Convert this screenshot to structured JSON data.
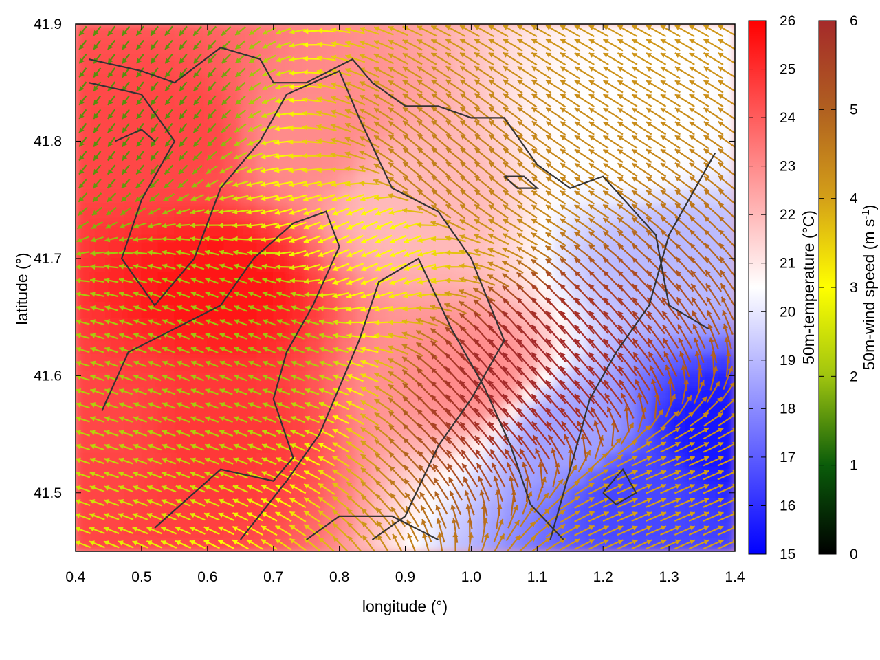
{
  "chart_data": {
    "type": "heatmap",
    "title": "",
    "xlabel": "longitude (°)",
    "ylabel": "latitude (°)",
    "xlim": [
      0.4,
      1.4
    ],
    "ylim": [
      41.45,
      41.9
    ],
    "x_ticks": [
      "0.4",
      "0.5",
      "0.6",
      "0.7",
      "0.8",
      "0.9",
      "1.0",
      "1.1",
      "1.2",
      "1.3",
      "1.4"
    ],
    "x_tick_values": [
      0.4,
      0.5,
      0.6,
      0.7,
      0.8,
      0.9,
      1.0,
      1.1,
      1.2,
      1.3,
      1.4
    ],
    "y_ticks": [
      "41.5",
      "41.6",
      "41.7",
      "41.8",
      "41.9"
    ],
    "y_tick_values": [
      41.5,
      41.6,
      41.7,
      41.8,
      41.9
    ],
    "grid": false,
    "temperature_colorbar": {
      "label": "50m-temperature (°C)",
      "range": [
        15,
        26
      ],
      "ticks": [
        "15",
        "16",
        "17",
        "18",
        "19",
        "20",
        "21",
        "22",
        "23",
        "24",
        "25",
        "26"
      ],
      "tick_values": [
        15,
        16,
        17,
        18,
        19,
        20,
        21,
        22,
        23,
        24,
        25,
        26
      ],
      "colors": [
        "#0000ff",
        "#ffffff",
        "#ff0000"
      ],
      "color_midpoint": 20.5
    },
    "wind_colorbar": {
      "label_main": "50m-wind speed (m s",
      "label_sup": "-1",
      "label_end": ")",
      "range": [
        0,
        6
      ],
      "ticks": [
        "0",
        "1",
        "2",
        "3",
        "4",
        "5",
        "6"
      ],
      "tick_values": [
        0,
        1,
        2,
        3,
        4,
        5,
        6
      ],
      "colors": [
        "#000000",
        "#0a5c0a",
        "#9fc40f",
        "#ffff00",
        "#d4a018",
        "#b06020",
        "#a52a2a"
      ]
    },
    "temperature_field_samples": [
      {
        "lon": 0.45,
        "lat": 41.55,
        "temp": 24.5
      },
      {
        "lon": 0.6,
        "lat": 41.55,
        "temp": 24.8
      },
      {
        "lon": 0.62,
        "lat": 41.68,
        "temp": 25.5
      },
      {
        "lon": 0.55,
        "lat": 41.8,
        "temp": 24.5
      },
      {
        "lon": 0.75,
        "lat": 41.8,
        "temp": 23.0
      },
      {
        "lon": 0.9,
        "lat": 41.75,
        "temp": 22.0
      },
      {
        "lon": 1.0,
        "lat": 41.6,
        "temp": 23.0
      },
      {
        "lon": 1.25,
        "lat": 41.8,
        "temp": 20.5
      },
      {
        "lon": 1.3,
        "lat": 41.7,
        "temp": 19.0
      },
      {
        "lon": 1.25,
        "lat": 41.5,
        "temp": 16.5
      },
      {
        "lon": 1.38,
        "lat": 41.55,
        "temp": 15.5
      },
      {
        "lon": 1.15,
        "lat": 41.55,
        "temp": 18.5
      }
    ],
    "wind_field_samples": [
      {
        "lon": 0.47,
        "lat": 41.83,
        "u": -0.3,
        "v": -0.4,
        "speed": 1.5
      },
      {
        "lon": 0.65,
        "lat": 41.64,
        "u": -0.5,
        "v": 0.2,
        "speed": 2.0
      },
      {
        "lon": 0.85,
        "lat": 41.72,
        "u": -0.7,
        "v": -0.3,
        "speed": 3.0
      },
      {
        "lon": 0.95,
        "lat": 41.77,
        "u": -0.6,
        "v": 0.5,
        "speed": 4.5
      },
      {
        "lon": 1.3,
        "lat": 41.49,
        "u": 0.7,
        "v": 0.3,
        "speed": 4.0
      },
      {
        "lon": 1.1,
        "lat": 41.6,
        "u": -0.6,
        "v": 0.7,
        "speed": 6.0
      }
    ],
    "contour_lines": [
      [
        [
          0.42,
          41.87
        ],
        [
          0.5,
          41.86
        ],
        [
          0.55,
          41.85
        ],
        [
          0.62,
          41.88
        ],
        [
          0.68,
          41.87
        ],
        [
          0.7,
          41.85
        ],
        [
          0.75,
          41.85
        ],
        [
          0.82,
          41.87
        ],
        [
          0.85,
          41.85
        ],
        [
          0.9,
          41.83
        ],
        [
          0.95,
          41.83
        ],
        [
          1.0,
          41.82
        ],
        [
          1.05,
          41.82
        ],
        [
          1.1,
          41.78
        ],
        [
          1.15,
          41.76
        ],
        [
          1.2,
          41.77
        ],
        [
          1.28,
          41.72
        ],
        [
          1.3,
          41.66
        ],
        [
          1.36,
          41.64
        ]
      ],
      [
        [
          0.42,
          41.85
        ],
        [
          0.5,
          41.84
        ],
        [
          0.55,
          41.8
        ],
        [
          0.5,
          41.75
        ],
        [
          0.47,
          41.7
        ],
        [
          0.52,
          41.66
        ],
        [
          0.58,
          41.7
        ],
        [
          0.62,
          41.76
        ],
        [
          0.68,
          41.8
        ],
        [
          0.72,
          41.84
        ],
        [
          0.8,
          41.86
        ],
        [
          0.83,
          41.82
        ],
        [
          0.88,
          41.76
        ],
        [
          0.95,
          41.74
        ],
        [
          1.0,
          41.7
        ],
        [
          1.05,
          41.63
        ],
        [
          1.0,
          41.58
        ],
        [
          0.95,
          41.54
        ],
        [
          0.9,
          41.48
        ],
        [
          0.85,
          41.46
        ]
      ],
      [
        [
          0.44,
          41.57
        ],
        [
          0.48,
          41.62
        ],
        [
          0.55,
          41.64
        ],
        [
          0.62,
          41.66
        ],
        [
          0.67,
          41.7
        ],
        [
          0.73,
          41.73
        ],
        [
          0.78,
          41.74
        ],
        [
          0.8,
          41.71
        ],
        [
          0.76,
          41.66
        ],
        [
          0.72,
          41.62
        ],
        [
          0.7,
          41.58
        ],
        [
          0.73,
          41.53
        ],
        [
          0.7,
          41.51
        ],
        [
          0.62,
          41.52
        ],
        [
          0.56,
          41.49
        ],
        [
          0.52,
          41.47
        ]
      ],
      [
        [
          0.65,
          41.46
        ],
        [
          0.72,
          41.51
        ],
        [
          0.77,
          41.55
        ],
        [
          0.83,
          41.63
        ],
        [
          0.86,
          41.68
        ],
        [
          0.92,
          41.7
        ],
        [
          0.97,
          41.64
        ],
        [
          1.02,
          41.59
        ],
        [
          1.06,
          41.54
        ],
        [
          1.09,
          41.49
        ],
        [
          1.14,
          41.46
        ]
      ],
      [
        [
          1.12,
          41.46
        ],
        [
          1.15,
          41.52
        ],
        [
          1.18,
          41.58
        ],
        [
          1.22,
          41.62
        ],
        [
          1.27,
          41.66
        ],
        [
          1.3,
          41.72
        ],
        [
          1.34,
          41.76
        ],
        [
          1.37,
          41.79
        ]
      ],
      [
        [
          1.2,
          41.5
        ],
        [
          1.23,
          41.52
        ],
        [
          1.25,
          41.5
        ],
        [
          1.22,
          41.49
        ],
        [
          1.2,
          41.5
        ]
      ],
      [
        [
          1.05,
          41.77
        ],
        [
          1.08,
          41.77
        ],
        [
          1.1,
          41.76
        ],
        [
          1.07,
          41.76
        ],
        [
          1.05,
          41.77
        ]
      ],
      [
        [
          0.46,
          41.8
        ],
        [
          0.5,
          41.81
        ],
        [
          0.52,
          41.8
        ]
      ],
      [
        [
          0.75,
          41.46
        ],
        [
          0.8,
          41.48
        ],
        [
          0.88,
          41.48
        ],
        [
          0.95,
          41.46
        ]
      ]
    ]
  }
}
